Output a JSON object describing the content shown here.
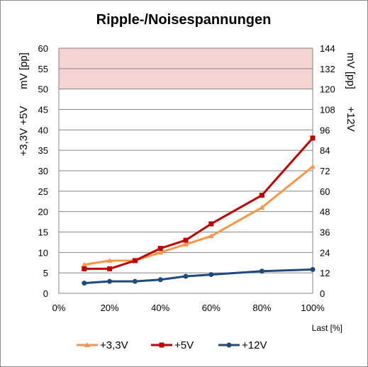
{
  "chart_data": {
    "type": "line",
    "title": "Ripple-/Noisespannungen",
    "xlabel": "Last [%]",
    "ylabel_left": [
      "+3,3V +5V",
      "mV [pp]"
    ],
    "ylabel_right": [
      "+12V",
      "mV [pp]"
    ],
    "xlim": [
      0,
      100
    ],
    "x_ticks": [
      "0%",
      "20%",
      "40%",
      "60%",
      "80%",
      "100%"
    ],
    "ylim_left": [
      0,
      60
    ],
    "y_ticks_left": [
      "0",
      "5",
      "10",
      "15",
      "20",
      "25",
      "30",
      "35",
      "40",
      "45",
      "50",
      "55",
      "60"
    ],
    "ylim_right": [
      0,
      144
    ],
    "y_ticks_right": [
      "0",
      "12",
      "24",
      "36",
      "48",
      "60",
      "72",
      "84",
      "96",
      "108",
      "120",
      "132",
      "144"
    ],
    "limit_band": {
      "from": 50,
      "to": 60,
      "color": "#f5d3d3",
      "axis": "left"
    },
    "grid": "horizontal",
    "legend_position": "bottom",
    "series": [
      {
        "name": "+3,3V",
        "axis": "left",
        "color": "#f79646",
        "marker": "triangle",
        "x": [
          10,
          20,
          30,
          40,
          50,
          60,
          80,
          100
        ],
        "y": [
          7,
          8,
          8,
          10,
          12,
          14,
          21,
          31
        ]
      },
      {
        "name": "+5V",
        "axis": "left",
        "color": "#c00000",
        "marker": "square",
        "x": [
          10,
          20,
          30,
          40,
          50,
          60,
          80,
          100
        ],
        "y": [
          6,
          6,
          8,
          11,
          13,
          17,
          24,
          38
        ]
      },
      {
        "name": "+12V",
        "axis": "right",
        "color": "#1f497d",
        "marker": "circle",
        "x": [
          10,
          20,
          30,
          40,
          50,
          60,
          80,
          100
        ],
        "y": [
          6,
          7,
          7,
          8,
          10,
          11,
          13,
          14
        ]
      }
    ]
  }
}
